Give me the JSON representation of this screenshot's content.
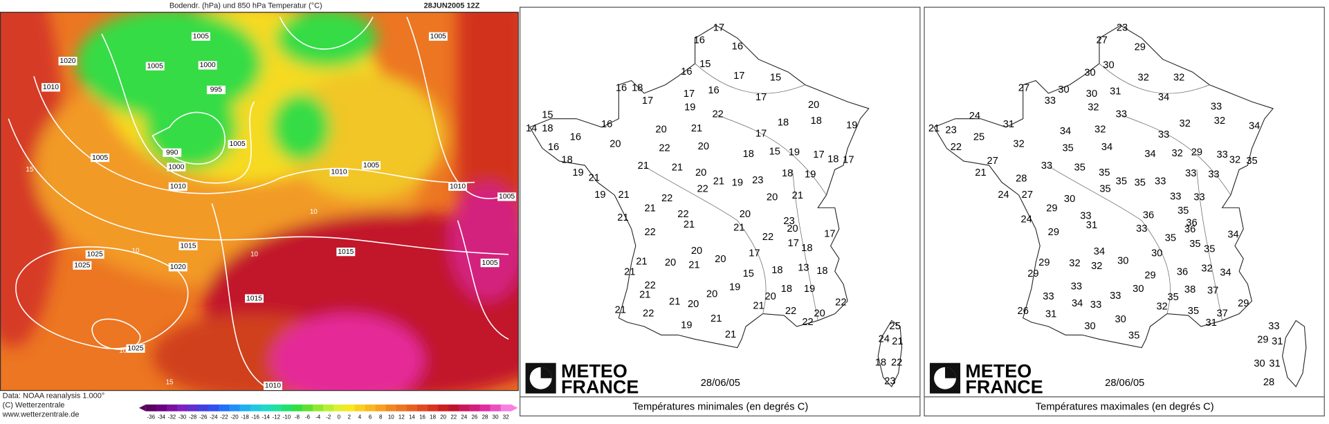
{
  "weather_map": {
    "title": "Bodendr. (hPa) und 850 hPa Temperatur (°C)",
    "date": "28JUN2005 12Z",
    "isobar_labels": [
      1005,
      1005,
      1020,
      1005,
      1000,
      1010,
      995,
      1005,
      990,
      1000,
      1005,
      1010,
      1010,
      1005,
      1010,
      1005,
      1015,
      1025,
      1015,
      1025,
      1020,
      1005,
      1015,
      1025,
      1010
    ],
    "temperature_labels": [
      15,
      10,
      10,
      10,
      15,
      10
    ],
    "credits": [
      "Data: NOAA reanalysis 1.000°",
      "(C) Wetterzentrale",
      "www.wetterzentrale.de"
    ],
    "colorbar": {
      "ticks": [
        -36,
        -34,
        -32,
        -30,
        -28,
        -26,
        -24,
        -22,
        -20,
        -18,
        -16,
        -14,
        -12,
        -10,
        -8,
        -6,
        -4,
        -2,
        0,
        2,
        4,
        6,
        8,
        10,
        12,
        14,
        16,
        18,
        20,
        22,
        24,
        26,
        28,
        30,
        32
      ],
      "colors": [
        "#5a0060",
        "#6a0080",
        "#7a10a0",
        "#8020c0",
        "#6030d0",
        "#4040e0",
        "#3050f0",
        "#2070f8",
        "#2090f8",
        "#20b0f0",
        "#20c8e0",
        "#20d8c8",
        "#20e0a0",
        "#20e070",
        "#30e040",
        "#60e030",
        "#90e830",
        "#b8f030",
        "#e0f030",
        "#f8e820",
        "#f8d020",
        "#f8b820",
        "#f8a020",
        "#f08820",
        "#ec7422",
        "#e86020",
        "#e04a20",
        "#d83420",
        "#cc2020",
        "#c0142c",
        "#c81a5a",
        "#d41e80",
        "#e02ea0",
        "#ec50c0",
        "#f880e0"
      ]
    }
  },
  "min_map": {
    "logo": [
      "METEO",
      "FRANCE"
    ],
    "date": "28/06/05",
    "caption": "Températures minimales (en degrés C)",
    "values": [
      17,
      16,
      16,
      16,
      15,
      17,
      15,
      16,
      18,
      17,
      16,
      17,
      19,
      22,
      17,
      20,
      15,
      18,
      16,
      14,
      18,
      16,
      20,
      21,
      17,
      18,
      19,
      20,
      22,
      20,
      18,
      15,
      19,
      17,
      18,
      17,
      16,
      18,
      21,
      21,
      19,
      21,
      20,
      21,
      19,
      23,
      18,
      19,
      22,
      19,
      21,
      22,
      20,
      21,
      21,
      22,
      20,
      21,
      21,
      21,
      23,
      20,
      22,
      22,
      17,
      17,
      18,
      20,
      20,
      20,
      21,
      17,
      21,
      21,
      18,
      13,
      18,
      15,
      22,
      19,
      18,
      19,
      21,
      21,
      20,
      20,
      20,
      21,
      22,
      21,
      22,
      21,
      22,
      20,
      22,
      19,
      21,
      25,
      24,
      21,
      18,
      22,
      23
    ]
  },
  "max_map": {
    "logo": [
      "METEO",
      "FRANCE"
    ],
    "date": "28/06/05",
    "caption": "Températures maximales (en degrés C)",
    "values": [
      23,
      27,
      29,
      30,
      30,
      32,
      32,
      27,
      30,
      30,
      31,
      33,
      32,
      33,
      34,
      33,
      24,
      32,
      31,
      21,
      23,
      25,
      34,
      32,
      33,
      32,
      34,
      22,
      32,
      35,
      34,
      34,
      32,
      29,
      33,
      32,
      35,
      27,
      33,
      35,
      35,
      35,
      35,
      33,
      33,
      33,
      21,
      28,
      24,
      27,
      30,
      35,
      33,
      33,
      29,
      33,
      36,
      35,
      31,
      33,
      36,
      36,
      24,
      29,
      35,
      34,
      35,
      35,
      34,
      30,
      30,
      32,
      32,
      29,
      29,
      36,
      32,
      34,
      29,
      33,
      30,
      38,
      37,
      33,
      34,
      33,
      33,
      35,
      32,
      29,
      26,
      31,
      30,
      35,
      37,
      31,
      30,
      35,
      33,
      29,
      31,
      30,
      31,
      28
    ]
  }
}
